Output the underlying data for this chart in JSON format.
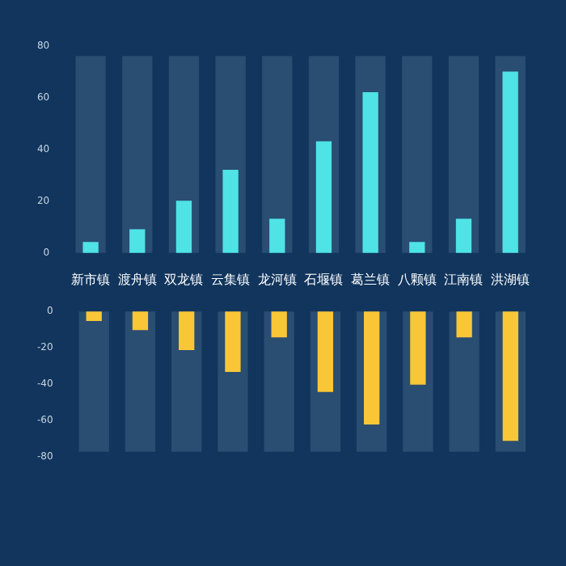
{
  "chart_data": [
    {
      "type": "bar",
      "categories": [
        "新市镇",
        "渡舟镇",
        "双龙镇",
        "云集镇",
        "龙河镇",
        "石堰镇",
        "葛兰镇",
        "八颗镇",
        "江南镇",
        "洪湖镇"
      ],
      "series": [
        {
          "color": "#4fe3e6",
          "values": [
            4,
            9,
            20,
            32,
            13,
            43,
            62,
            4,
            13,
            70
          ]
        },
        {
          "color": "#2a4d72",
          "values": [
            76,
            76,
            76,
            76,
            76,
            76,
            76,
            76,
            76,
            76
          ]
        }
      ],
      "ylim": [
        0,
        80
      ],
      "yticks": [
        0,
        20,
        40,
        60,
        80
      ],
      "grid": false,
      "legend": false
    },
    {
      "type": "bar",
      "categories": [
        null,
        null,
        null,
        null,
        null,
        null,
        null,
        null,
        null,
        null
      ],
      "series": [
        {
          "color": "#f8c637",
          "values": [
            -5,
            -10,
            -21,
            -33,
            -14,
            -44,
            -62,
            -40,
            -14,
            -71
          ]
        },
        {
          "color": "#2a4d72",
          "values": [
            -77,
            -77,
            -77,
            -77,
            -77,
            -77,
            -77,
            -77,
            -77,
            -77
          ]
        }
      ],
      "ylim": [
        -80,
        0
      ],
      "yticks": [
        -80,
        -60,
        -40,
        -20,
        0
      ],
      "grid": false,
      "legend": false
    }
  ]
}
